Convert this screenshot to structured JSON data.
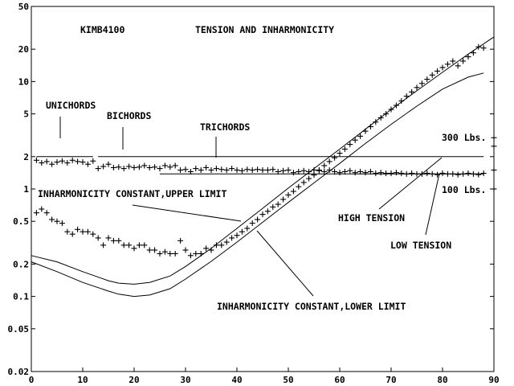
{
  "chart_data": {
    "type": "scatter",
    "title": "TENSION AND INHARMONICITY",
    "subtitle": "KIMB4100",
    "xlim": [
      0,
      90
    ],
    "ylim": [
      0.02,
      50
    ],
    "yscale": "log",
    "grid": false,
    "x_ticks": [
      0,
      10,
      20,
      30,
      40,
      50,
      60,
      70,
      80,
      90
    ],
    "y_ticks": [
      0.02,
      0.05,
      0.1,
      0.2,
      0.5,
      1,
      2,
      5,
      10,
      20,
      50
    ],
    "y_tick_labels": [
      "0.02",
      "0.05",
      "0.1",
      "0.2",
      "0.5",
      "1",
      "2",
      "5",
      "10",
      "20",
      "50"
    ],
    "series": [
      {
        "marker": "+",
        "x": [
          1,
          2,
          3,
          4,
          5,
          6,
          7,
          8,
          9,
          10,
          11,
          12,
          13,
          14,
          15,
          16,
          17,
          18,
          19,
          20,
          21,
          22,
          23,
          24,
          25,
          26,
          27,
          28,
          29,
          30,
          31,
          32,
          33,
          34,
          35,
          36,
          37,
          38,
          39,
          40,
          41,
          42,
          43,
          44,
          45,
          46,
          47,
          48,
          49,
          50,
          51,
          52,
          53,
          54,
          55,
          56,
          57,
          58,
          59,
          60,
          61,
          62,
          63,
          64,
          65,
          66,
          67,
          68,
          69,
          70,
          71,
          72,
          73,
          74,
          75,
          76,
          77,
          78,
          79,
          80,
          81,
          82,
          83,
          84,
          85,
          86,
          87,
          88
        ],
        "y": [
          1.85,
          1.75,
          1.8,
          1.7,
          1.78,
          1.82,
          1.75,
          1.85,
          1.8,
          1.78,
          1.7,
          1.82,
          1.55,
          1.62,
          1.7,
          1.58,
          1.6,
          1.55,
          1.62,
          1.58,
          1.6,
          1.65,
          1.58,
          1.6,
          1.55,
          1.65,
          1.6,
          1.65,
          1.5,
          1.52,
          1.45,
          1.55,
          1.5,
          1.58,
          1.5,
          1.55,
          1.52,
          1.5,
          1.55,
          1.5,
          1.48,
          1.52,
          1.5,
          1.52,
          1.5,
          1.5,
          1.52,
          1.45,
          1.48,
          1.5,
          1.42,
          1.45,
          1.48,
          1.45,
          1.5,
          1.48,
          1.45,
          1.5,
          1.45,
          1.42,
          1.45,
          1.48,
          1.42,
          1.45,
          1.42,
          1.45,
          1.4,
          1.42,
          1.4,
          1.4,
          1.42,
          1.4,
          1.38,
          1.4,
          1.38,
          1.38,
          1.4,
          1.38,
          1.36,
          1.4,
          1.38,
          1.38,
          1.36,
          1.38,
          1.4,
          1.38,
          1.36,
          1.4
        ]
      },
      {
        "marker": "+",
        "x": [
          1,
          2,
          3,
          4,
          5,
          6,
          7,
          8,
          9,
          10,
          11,
          12,
          13,
          14,
          15,
          16,
          17,
          18,
          19,
          20,
          21,
          22,
          23,
          24,
          25,
          26,
          27,
          28,
          29,
          30,
          31,
          32,
          33,
          34,
          35,
          36,
          37,
          38,
          39,
          40,
          41,
          42,
          43,
          44,
          45,
          46,
          47,
          48,
          49,
          50,
          51,
          52,
          53,
          54,
          55,
          56,
          57,
          58,
          59,
          60,
          61,
          62,
          63,
          64,
          65,
          66,
          67,
          68,
          69,
          70,
          71,
          72,
          73,
          74,
          75,
          76,
          77,
          78,
          79,
          80,
          81,
          82,
          83,
          84,
          85,
          86,
          87,
          88
        ],
        "y": [
          0.6,
          0.65,
          0.6,
          0.52,
          0.5,
          0.48,
          0.4,
          0.38,
          0.42,
          0.4,
          0.4,
          0.38,
          0.35,
          0.3,
          0.35,
          0.33,
          0.33,
          0.3,
          0.3,
          0.28,
          0.3,
          0.3,
          0.27,
          0.27,
          0.25,
          0.26,
          0.25,
          0.25,
          0.33,
          0.27,
          0.24,
          0.25,
          0.25,
          0.28,
          0.27,
          0.3,
          0.3,
          0.32,
          0.35,
          0.37,
          0.4,
          0.43,
          0.48,
          0.52,
          0.58,
          0.62,
          0.68,
          0.72,
          0.8,
          0.88,
          0.95,
          1.05,
          1.15,
          1.25,
          1.35,
          1.5,
          1.65,
          1.8,
          1.95,
          2.15,
          2.35,
          2.6,
          2.85,
          3.1,
          3.45,
          3.8,
          4.2,
          4.6,
          5.0,
          5.5,
          6.0,
          6.6,
          7.3,
          8.0,
          8.8,
          9.6,
          10.5,
          11.5,
          12.5,
          13.5,
          14.5,
          15.5,
          14.0,
          15.5,
          17.0,
          18.5,
          21.0,
          20.5
        ]
      }
    ],
    "lines": {
      "upper_limit": {
        "x": [
          0,
          5,
          10,
          15,
          17,
          20,
          23,
          27,
          30,
          35,
          40,
          45,
          50,
          55,
          60,
          65,
          70,
          75,
          80,
          85,
          90
        ],
        "y": [
          0.24,
          0.21,
          0.17,
          0.14,
          0.133,
          0.13,
          0.135,
          0.155,
          0.19,
          0.28,
          0.43,
          0.66,
          1.02,
          1.55,
          2.35,
          3.6,
          5.5,
          8.2,
          12.2,
          18.0,
          26.0
        ]
      },
      "lower_limit": {
        "x": [
          0,
          5,
          10,
          15,
          17,
          20,
          23,
          27,
          30,
          35,
          40,
          45,
          50,
          55,
          60,
          65,
          70,
          75,
          80,
          85,
          88
        ],
        "y": [
          0.21,
          0.17,
          0.135,
          0.112,
          0.105,
          0.1,
          0.103,
          0.118,
          0.145,
          0.212,
          0.32,
          0.49,
          0.75,
          1.14,
          1.73,
          2.65,
          4.0,
          5.9,
          8.5,
          11.0,
          12.0
        ]
      },
      "ref_300": {
        "x": [
          25,
          88
        ],
        "y": [
          2.0,
          2.0
        ]
      },
      "ref_100": {
        "x": [
          25,
          88
        ],
        "y": [
          1.38,
          1.38
        ]
      },
      "unichords_seg": {
        "x": [
          1,
          12
        ],
        "y": [
          2.0,
          2.0
        ]
      },
      "bichords_seg": {
        "x": [
          13,
          25
        ],
        "y": [
          2.0,
          2.0
        ]
      },
      "trichords_seg": {
        "x": [
          25,
          88
        ],
        "y": [
          2.0,
          2.0
        ]
      }
    },
    "annotations": {
      "model": "KIMB4100",
      "title": "TENSION AND INHARMONICITY",
      "unichords": "UNICHORDS",
      "bichords": "BICHORDS",
      "trichords": "TRICHORDS",
      "upper_limit_label": "INHARMONICITY CONSTANT,UPPER LIMIT",
      "lower_limit_label": "INHARMONICITY CONSTANT,LOWER LIMIT",
      "high_tension": "HIGH TENSION",
      "low_tension": "LOW TENSION",
      "lbs_300": "300 Lbs.",
      "lbs_100": "100 Lbs."
    },
    "right_axis_marks": [
      3.0,
      2.5,
      1.5,
      1.0
    ]
  }
}
